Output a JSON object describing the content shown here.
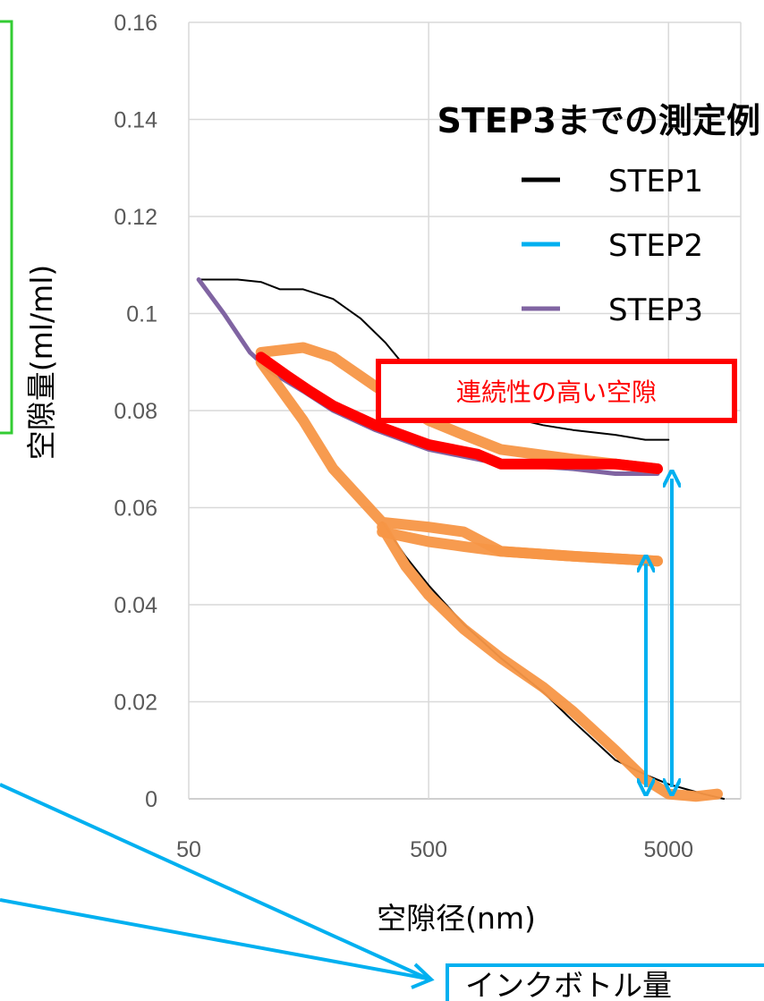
{
  "chart_data": {
    "type": "line",
    "title": "STEP3までの測定例",
    "xlabel": "空隙径(nm)",
    "ylabel": "空隙量(ml/ml)",
    "x_scale": "log",
    "xlim": [
      50,
      10000
    ],
    "ylim": [
      0,
      0.16
    ],
    "x_ticks": [
      "50",
      "500",
      "5000"
    ],
    "y_ticks": [
      "0",
      "0.02",
      "0.04",
      "0.06",
      "0.08",
      "0.1",
      "0.12",
      "0.14",
      "0.16"
    ],
    "grid": true,
    "legend_position": "top-right",
    "series": [
      {
        "name": "STEP1",
        "color": "#000000",
        "x": [
          55,
          80,
          100,
          120,
          150,
          200,
          260,
          330,
          400,
          500,
          700,
          1000,
          1500,
          2000,
          3000,
          4000,
          5000,
          7000,
          8500
        ],
        "y": [
          0.107,
          0.107,
          0.1065,
          0.105,
          0.105,
          0.103,
          0.099,
          0.094,
          0.089,
          0.085,
          0.081,
          0.079,
          0.077,
          0.076,
          0.075,
          0.074,
          0.074,
          null,
          null
        ]
      },
      {
        "name": "STEP1",
        "color": "#000000",
        "x": [
          320,
          400,
          500,
          700,
          1000,
          1500,
          2000,
          3000,
          4000,
          5000,
          7000,
          8500
        ],
        "y": [
          0.057,
          0.05,
          0.044,
          0.036,
          0.029,
          0.022,
          0.016,
          0.008,
          0.005,
          0.003,
          0.001,
          0.0
        ]
      },
      {
        "name": "STEP2",
        "color": "#00b0f0",
        "x": [
          4500
        ],
        "y": [
          0.049
        ]
      },
      {
        "name": "STEP3",
        "color": "#8064a2",
        "x": [
          55,
          70,
          90,
          110,
          150,
          200,
          300,
          500,
          1000,
          2000,
          3000,
          4500
        ],
        "y": [
          0.107,
          0.1,
          0.092,
          0.088,
          0.084,
          0.08,
          0.076,
          0.072,
          0.069,
          0.068,
          0.067,
          0.067
        ]
      }
    ],
    "annotations": [
      "連続性の高い空隙",
      "インクボトル量"
    ]
  }
}
